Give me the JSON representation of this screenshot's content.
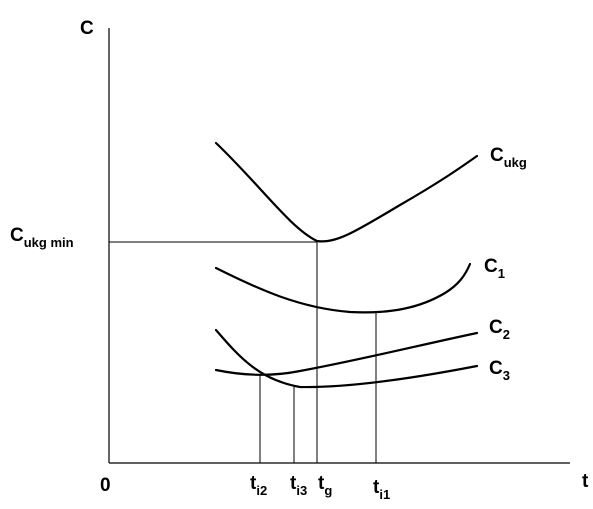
{
  "axes": {
    "y_label": "C",
    "x_label": "t",
    "origin_label": "0"
  },
  "y_marker": {
    "label_main": "C",
    "label_sub": "ukg min"
  },
  "curves": [
    {
      "key": "c_ukg",
      "label_main": "C",
      "label_sub": "ukg"
    },
    {
      "key": "c1",
      "label_main": "C",
      "label_sub": "1"
    },
    {
      "key": "c2",
      "label_main": "C",
      "label_sub": "2"
    },
    {
      "key": "c3",
      "label_main": "C",
      "label_sub": "3"
    }
  ],
  "x_markers": [
    {
      "key": "ti2",
      "label_main": "t",
      "label_sub": "i2"
    },
    {
      "key": "ti3",
      "label_main": "t",
      "label_sub": "i3"
    },
    {
      "key": "tg",
      "label_main": "t",
      "label_sub": "g"
    },
    {
      "key": "ti1",
      "label_main": "t",
      "label_sub": "i1"
    }
  ]
}
